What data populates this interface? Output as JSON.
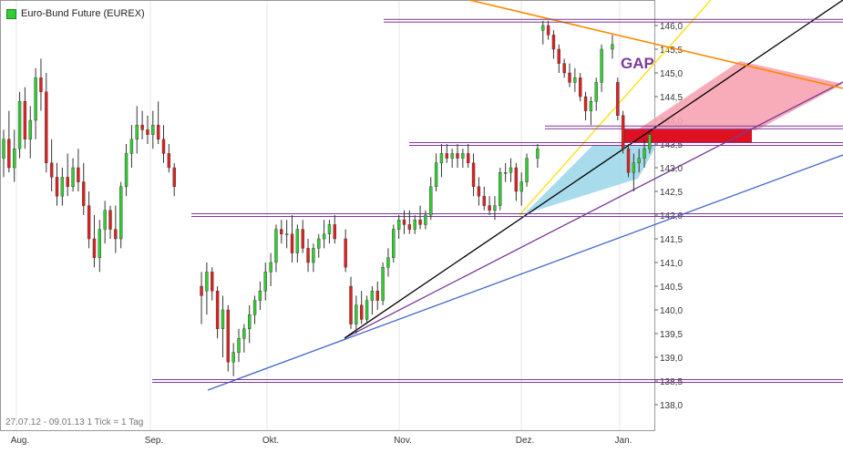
{
  "legend": {
    "label": "Euro-Bund Future (EUREX)",
    "color": "#33cc33"
  },
  "footer": "27.07.12 - 09.01.13   1 Tick = 1 Tag",
  "annotation": {
    "gap": "GAP"
  },
  "colors": {
    "up": "#33cc33",
    "down": "#dd2222",
    "support": "#7a3a96",
    "trend_black": "#000000",
    "trend_blue": "#4466cc",
    "trend_yellow": "#ffdd00",
    "trend_orange": "#ff8800",
    "zone_red": "#f7a3b3",
    "zone_blue": "#9fd8ea"
  },
  "chart_data": {
    "type": "candlestick",
    "title": "Euro-Bund Future (EUREX)",
    "ylim": [
      137.8,
      146.3
    ],
    "yticks": [
      "138,0",
      "138,5",
      "139,0",
      "139,5",
      "140,0",
      "140,5",
      "141,0",
      "141,5",
      "142,0",
      "142,5",
      "143,0",
      "143,5",
      "144,0",
      "144,5",
      "145,0",
      "145,5",
      "146,0"
    ],
    "xticks": [
      "Aug.",
      "Sep.",
      "Okt.",
      "Nov.",
      "Dez.",
      "Jan."
    ],
    "range": "27.07.12 - 09.01.13",
    "horizontal_levels": [
      138.5,
      142.0,
      143.5,
      143.85,
      146.1
    ],
    "candles": [
      {
        "o": 143.2,
        "h": 143.8,
        "l": 142.8,
        "c": 143.6
      },
      {
        "o": 143.6,
        "h": 144.2,
        "l": 142.9,
        "c": 143.0
      },
      {
        "o": 143.0,
        "h": 143.8,
        "l": 142.7,
        "c": 143.4
      },
      {
        "o": 143.4,
        "h": 144.6,
        "l": 143.2,
        "c": 144.4
      },
      {
        "o": 144.4,
        "h": 144.7,
        "l": 143.4,
        "c": 143.6
      },
      {
        "o": 143.6,
        "h": 144.3,
        "l": 143.2,
        "c": 144.0
      },
      {
        "o": 144.0,
        "h": 145.1,
        "l": 143.6,
        "c": 144.9
      },
      {
        "o": 144.9,
        "h": 145.3,
        "l": 144.2,
        "c": 144.6
      },
      {
        "o": 144.6,
        "h": 145.0,
        "l": 142.9,
        "c": 143.1
      },
      {
        "o": 143.1,
        "h": 143.6,
        "l": 142.5,
        "c": 142.8
      },
      {
        "o": 142.8,
        "h": 143.1,
        "l": 142.2,
        "c": 142.4
      },
      {
        "o": 142.4,
        "h": 143.0,
        "l": 142.2,
        "c": 142.8
      },
      {
        "o": 142.8,
        "h": 143.3,
        "l": 142.4,
        "c": 142.6
      },
      {
        "o": 142.6,
        "h": 143.2,
        "l": 142.5,
        "c": 143.0
      },
      {
        "o": 143.0,
        "h": 143.4,
        "l": 142.5,
        "c": 142.7
      },
      {
        "o": 142.7,
        "h": 143.1,
        "l": 142.0,
        "c": 142.2
      },
      {
        "o": 142.2,
        "h": 142.5,
        "l": 141.3,
        "c": 141.5
      },
      {
        "o": 141.5,
        "h": 142.0,
        "l": 140.9,
        "c": 141.1
      },
      {
        "o": 141.1,
        "h": 141.9,
        "l": 140.8,
        "c": 141.7
      },
      {
        "o": 141.7,
        "h": 142.3,
        "l": 141.4,
        "c": 142.1
      },
      {
        "o": 142.1,
        "h": 142.2,
        "l": 141.5,
        "c": 141.7
      },
      {
        "o": 141.7,
        "h": 142.2,
        "l": 141.2,
        "c": 141.5
      },
      {
        "o": 141.5,
        "h": 142.7,
        "l": 141.3,
        "c": 142.6
      },
      {
        "o": 142.6,
        "h": 143.5,
        "l": 142.4,
        "c": 143.3
      },
      {
        "o": 143.3,
        "h": 143.9,
        "l": 143.0,
        "c": 143.6
      },
      {
        "o": 143.6,
        "h": 144.3,
        "l": 143.3,
        "c": 143.9
      },
      {
        "o": 143.9,
        "h": 144.2,
        "l": 143.6,
        "c": 143.8
      },
      {
        "o": 143.8,
        "h": 144.1,
        "l": 143.5,
        "c": 143.7
      },
      {
        "o": 143.7,
        "h": 144.2,
        "l": 143.4,
        "c": 143.9
      },
      {
        "o": 143.9,
        "h": 144.4,
        "l": 143.5,
        "c": 143.6
      },
      {
        "o": 143.6,
        "h": 143.9,
        "l": 143.1,
        "c": 143.3
      },
      {
        "o": 143.3,
        "h": 143.5,
        "l": 142.9,
        "c": 143.0
      },
      {
        "o": 143.0,
        "h": 143.1,
        "l": 142.4,
        "c": 142.6
      },
      {
        "o": 140.5,
        "h": 140.8,
        "l": 139.7,
        "c": 140.3
      },
      {
        "o": 140.4,
        "h": 141.0,
        "l": 139.9,
        "c": 140.8
      },
      {
        "o": 140.8,
        "h": 140.9,
        "l": 140.2,
        "c": 140.4
      },
      {
        "o": 140.4,
        "h": 140.5,
        "l": 139.4,
        "c": 139.6
      },
      {
        "o": 139.6,
        "h": 140.3,
        "l": 139.0,
        "c": 140.0
      },
      {
        "o": 140.0,
        "h": 140.1,
        "l": 138.7,
        "c": 138.9
      },
      {
        "o": 138.9,
        "h": 139.3,
        "l": 138.6,
        "c": 139.1
      },
      {
        "o": 139.1,
        "h": 139.6,
        "l": 138.9,
        "c": 139.4
      },
      {
        "o": 139.4,
        "h": 139.7,
        "l": 139.1,
        "c": 139.6
      },
      {
        "o": 139.6,
        "h": 140.1,
        "l": 139.3,
        "c": 139.9
      },
      {
        "o": 139.9,
        "h": 140.3,
        "l": 139.7,
        "c": 140.2
      },
      {
        "o": 140.2,
        "h": 140.6,
        "l": 140.0,
        "c": 140.4
      },
      {
        "o": 140.4,
        "h": 141.0,
        "l": 140.2,
        "c": 140.8
      },
      {
        "o": 140.8,
        "h": 141.2,
        "l": 140.5,
        "c": 141.0
      },
      {
        "o": 141.0,
        "h": 141.8,
        "l": 140.8,
        "c": 141.7
      },
      {
        "o": 141.7,
        "h": 141.9,
        "l": 141.4,
        "c": 141.6
      },
      {
        "o": 141.6,
        "h": 141.9,
        "l": 141.3,
        "c": 141.6
      },
      {
        "o": 141.6,
        "h": 142.0,
        "l": 141.0,
        "c": 141.2
      },
      {
        "o": 141.2,
        "h": 141.8,
        "l": 141.0,
        "c": 141.7
      },
      {
        "o": 141.7,
        "h": 141.9,
        "l": 141.2,
        "c": 141.3
      },
      {
        "o": 141.3,
        "h": 141.5,
        "l": 140.8,
        "c": 141.0
      },
      {
        "o": 141.0,
        "h": 141.4,
        "l": 140.8,
        "c": 141.3
      },
      {
        "o": 141.3,
        "h": 141.6,
        "l": 141.1,
        "c": 141.5
      },
      {
        "o": 141.5,
        "h": 141.9,
        "l": 141.3,
        "c": 141.6
      },
      {
        "o": 141.6,
        "h": 141.9,
        "l": 141.4,
        "c": 141.8
      },
      {
        "o": 141.8,
        "h": 142.0,
        "l": 141.4,
        "c": 141.5
      },
      {
        "o": 141.5,
        "h": 141.7,
        "l": 140.8,
        "c": 140.9
      },
      {
        "o": 140.5,
        "h": 140.7,
        "l": 139.6,
        "c": 139.7
      },
      {
        "o": 139.7,
        "h": 140.3,
        "l": 139.5,
        "c": 140.1
      },
      {
        "o": 140.1,
        "h": 140.4,
        "l": 139.7,
        "c": 139.8
      },
      {
        "o": 139.8,
        "h": 140.3,
        "l": 139.7,
        "c": 140.2
      },
      {
        "o": 140.2,
        "h": 140.5,
        "l": 139.9,
        "c": 140.4
      },
      {
        "o": 140.4,
        "h": 140.6,
        "l": 140.0,
        "c": 140.2
      },
      {
        "o": 140.2,
        "h": 141.0,
        "l": 140.1,
        "c": 140.9
      },
      {
        "o": 140.9,
        "h": 141.3,
        "l": 140.7,
        "c": 141.1
      },
      {
        "o": 141.1,
        "h": 141.8,
        "l": 141.0,
        "c": 141.7
      },
      {
        "o": 141.7,
        "h": 142.0,
        "l": 141.5,
        "c": 141.9
      },
      {
        "o": 141.9,
        "h": 142.1,
        "l": 141.6,
        "c": 141.8
      },
      {
        "o": 141.8,
        "h": 142.1,
        "l": 141.6,
        "c": 141.7
      },
      {
        "o": 141.7,
        "h": 142.0,
        "l": 141.6,
        "c": 141.9
      },
      {
        "o": 141.9,
        "h": 142.2,
        "l": 141.7,
        "c": 141.8
      },
      {
        "o": 141.8,
        "h": 142.1,
        "l": 141.7,
        "c": 142.0
      },
      {
        "o": 142.0,
        "h": 142.8,
        "l": 141.9,
        "c": 142.6
      },
      {
        "o": 142.6,
        "h": 143.3,
        "l": 142.5,
        "c": 143.1
      },
      {
        "o": 143.1,
        "h": 143.5,
        "l": 142.8,
        "c": 143.3
      },
      {
        "o": 143.3,
        "h": 143.5,
        "l": 143.1,
        "c": 143.2
      },
      {
        "o": 143.2,
        "h": 143.4,
        "l": 143.0,
        "c": 143.3
      },
      {
        "o": 143.3,
        "h": 143.5,
        "l": 143.0,
        "c": 143.2
      },
      {
        "o": 143.2,
        "h": 143.4,
        "l": 143.0,
        "c": 143.3
      },
      {
        "o": 143.3,
        "h": 143.5,
        "l": 143.0,
        "c": 143.1
      },
      {
        "o": 143.1,
        "h": 143.3,
        "l": 142.4,
        "c": 142.6
      },
      {
        "o": 142.6,
        "h": 142.8,
        "l": 142.2,
        "c": 142.4
      },
      {
        "o": 142.4,
        "h": 142.6,
        "l": 142.1,
        "c": 142.2
      },
      {
        "o": 142.2,
        "h": 142.4,
        "l": 142.0,
        "c": 142.1
      },
      {
        "o": 142.1,
        "h": 142.4,
        "l": 141.9,
        "c": 142.2
      },
      {
        "o": 142.2,
        "h": 143.0,
        "l": 142.1,
        "c": 142.9
      },
      {
        "o": 142.9,
        "h": 143.1,
        "l": 142.7,
        "c": 142.9
      },
      {
        "o": 142.9,
        "h": 143.2,
        "l": 142.7,
        "c": 143.0
      },
      {
        "o": 143.0,
        "h": 143.1,
        "l": 142.3,
        "c": 142.5
      },
      {
        "o": 142.5,
        "h": 142.9,
        "l": 142.2,
        "c": 142.7
      },
      {
        "o": 142.7,
        "h": 143.3,
        "l": 142.6,
        "c": 143.2
      },
      {
        "o": 143.2,
        "h": 143.5,
        "l": 143.0,
        "c": 143.4
      },
      {
        "o": 145.9,
        "h": 146.1,
        "l": 145.6,
        "c": 146.0
      },
      {
        "o": 146.0,
        "h": 146.1,
        "l": 145.7,
        "c": 145.8
      },
      {
        "o": 145.8,
        "h": 145.9,
        "l": 145.3,
        "c": 145.5
      },
      {
        "o": 145.5,
        "h": 145.6,
        "l": 145.0,
        "c": 145.2
      },
      {
        "o": 145.2,
        "h": 145.3,
        "l": 144.9,
        "c": 145.0
      },
      {
        "o": 145.0,
        "h": 145.2,
        "l": 144.7,
        "c": 144.8
      },
      {
        "o": 144.8,
        "h": 145.1,
        "l": 144.6,
        "c": 144.9
      },
      {
        "o": 144.9,
        "h": 145.0,
        "l": 144.4,
        "c": 144.5
      },
      {
        "o": 144.5,
        "h": 144.6,
        "l": 144.0,
        "c": 144.2
      },
      {
        "o": 144.2,
        "h": 144.5,
        "l": 143.9,
        "c": 144.4
      },
      {
        "o": 144.4,
        "h": 144.9,
        "l": 144.2,
        "c": 144.8
      },
      {
        "o": 144.8,
        "h": 145.6,
        "l": 144.6,
        "c": 145.5
      },
      {
        "o": 145.5,
        "h": 145.8,
        "l": 145.3,
        "c": 145.6
      },
      {
        "o": 144.8,
        "h": 144.9,
        "l": 144.0,
        "c": 144.1
      },
      {
        "o": 144.1,
        "h": 144.2,
        "l": 143.3,
        "c": 143.4
      },
      {
        "o": 143.4,
        "h": 143.5,
        "l": 142.8,
        "c": 142.9
      },
      {
        "o": 142.9,
        "h": 143.3,
        "l": 142.5,
        "c": 143.1
      },
      {
        "o": 143.1,
        "h": 143.4,
        "l": 142.9,
        "c": 143.2
      },
      {
        "o": 143.2,
        "h": 143.6,
        "l": 143.0,
        "c": 143.4
      },
      {
        "o": 143.4,
        "h": 143.8,
        "l": 143.3,
        "c": 143.7
      }
    ]
  }
}
